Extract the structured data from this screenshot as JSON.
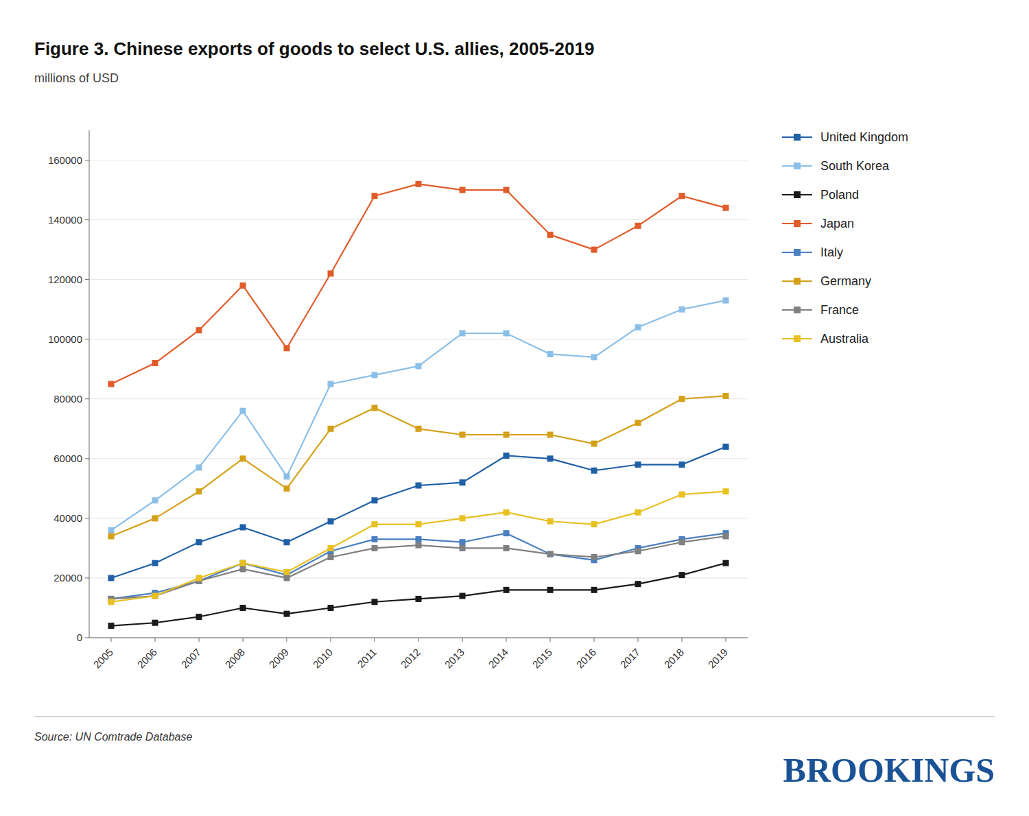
{
  "chart_data": {
    "type": "line",
    "title": "Figure 3. Chinese exports of goods to select U.S. allies, 2005-2019",
    "subtitle": "millions of USD",
    "annotations": [
      "Source: UN Comtrade Database",
      "BROOKINGS"
    ],
    "x": [
      2005,
      2006,
      2007,
      2008,
      2009,
      2010,
      2011,
      2012,
      2013,
      2014,
      2015,
      2016,
      2017,
      2018,
      2019
    ],
    "series": [
      {
        "name": "United Kingdom",
        "color": "#1f5fa6",
        "values": [
          20000,
          25000,
          32000,
          37000,
          32000,
          39000,
          46000,
          51000,
          52000,
          61000,
          60000,
          56000,
          58000,
          58000,
          64000
        ]
      },
      {
        "name": "South Korea",
        "color": "#8bbfe8",
        "values": [
          36000,
          46000,
          57000,
          76000,
          54000,
          85000,
          88000,
          91000,
          102000,
          102000,
          95000,
          94000,
          104000,
          110000,
          113000
        ]
      },
      {
        "name": "Poland",
        "color": "#1a1a1a",
        "values": [
          4000,
          5000,
          7000,
          10000,
          8000,
          10000,
          12000,
          13000,
          14000,
          16000,
          16000,
          16000,
          18000,
          21000,
          25000
        ]
      },
      {
        "name": "Japan",
        "color": "#e05c2a",
        "values": [
          85000,
          92000,
          103000,
          118000,
          97000,
          122000,
          148000,
          152000,
          150000,
          150000,
          135000,
          130000,
          138000,
          148000,
          144000
        ]
      },
      {
        "name": "Italy",
        "color": "#4a7fc0",
        "values": [
          13000,
          15000,
          19000,
          25000,
          21000,
          29000,
          33000,
          33000,
          32000,
          35000,
          28000,
          26000,
          30000,
          33000,
          35000
        ]
      },
      {
        "name": "Germany",
        "color": "#d4a017",
        "values": [
          34000,
          40000,
          49000,
          60000,
          50000,
          70000,
          77000,
          70000,
          68000,
          68000,
          68000,
          65000,
          72000,
          80000,
          81000
        ]
      },
      {
        "name": "France",
        "color": "#808080",
        "values": [
          13000,
          14000,
          19000,
          23000,
          20000,
          27000,
          30000,
          31000,
          30000,
          30000,
          28000,
          27000,
          29000,
          32000,
          34000
        ]
      },
      {
        "name": "Australia",
        "color": "#e8c020",
        "values": [
          12000,
          14000,
          20000,
          25000,
          22000,
          30000,
          38000,
          38000,
          40000,
          42000,
          39000,
          38000,
          42000,
          48000,
          49000
        ]
      }
    ],
    "xlim": [
      2004.5,
      2019.5
    ],
    "xticks": [
      2005,
      2006,
      2007,
      2008,
      2009,
      2010,
      2011,
      2012,
      2013,
      2014,
      2015,
      2016,
      2017,
      2018,
      2019
    ],
    "ylim": [
      0,
      170000
    ],
    "yticks": [
      0,
      20000,
      40000,
      60000,
      80000,
      100000,
      120000,
      140000,
      160000
    ],
    "grid": true,
    "legend": "right",
    "marker": "square"
  }
}
